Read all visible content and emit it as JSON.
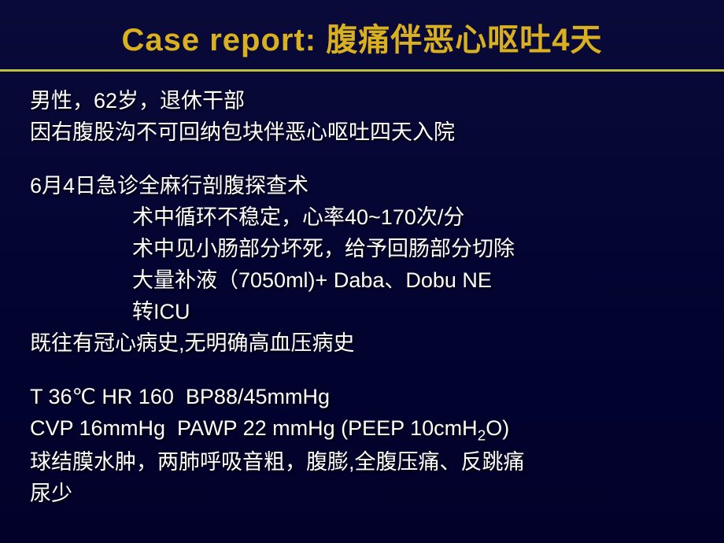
{
  "title": {
    "prefix": "Case report: ",
    "main": "腹痛伴恶心呕吐4天",
    "prefix_color": "#d8b020",
    "main_color": "#d8b020",
    "fontsize": 40
  },
  "rule_color": "#c0c040",
  "body_color": "#ffffff",
  "body_fontsize": 27,
  "background_gradient": [
    "#0a0a3a",
    "#030330",
    "#01012a"
  ],
  "lines": [
    {
      "text": "男性，62岁，退休干部",
      "indent": false
    },
    {
      "text": "因右腹股沟不可回纳包块伴恶心呕吐四天入院",
      "indent": false
    },
    {
      "gap": true
    },
    {
      "text": "6月4日急诊全麻行剖腹探查术",
      "indent": false
    },
    {
      "text": "术中循环不稳定，心率40~170次/分",
      "indent": true
    },
    {
      "text": "术中见小肠部分坏死，给予回肠部分切除",
      "indent": true
    },
    {
      "text": "大量补液（7050ml)+ Daba、Dobu NE",
      "indent": true
    },
    {
      "text": "转ICU",
      "indent": true
    },
    {
      "text": "既往有冠心病史,无明确高血压病史",
      "indent": false
    },
    {
      "gap": true
    },
    {
      "text": "T 36℃ HR 160  BP88/45mmHg",
      "indent": false
    },
    {
      "html": "CVP 16mmHg  PAWP 22 mmHg (PEEP 10cmH<sub>2</sub>O)",
      "indent": false
    },
    {
      "text": "球结膜水肿，两肺呼吸音粗，腹膨,全腹压痛、反跳痛",
      "indent": false
    },
    {
      "text": "尿少",
      "indent": false
    }
  ]
}
